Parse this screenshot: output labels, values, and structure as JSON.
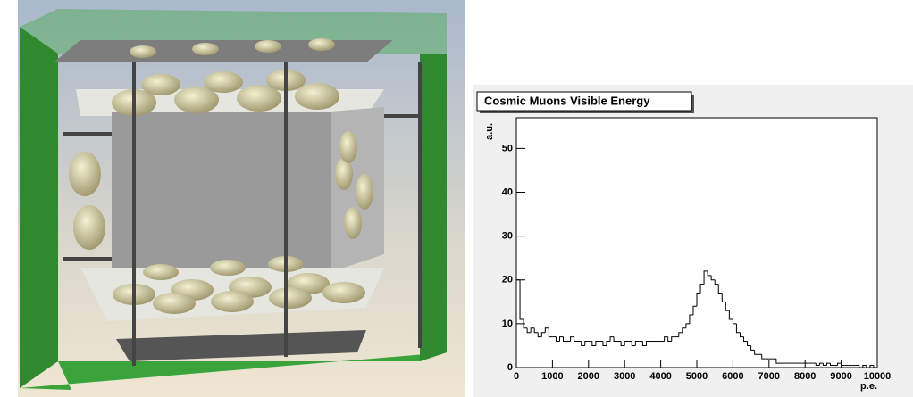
{
  "chart_data": {
    "type": "histogram",
    "title": "Cosmic Muons Visible Energy",
    "y_label": "a.u.",
    "x_label": "p.e.",
    "color": "#000000",
    "xlim": [
      0,
      10000
    ],
    "ylim": [
      0,
      57
    ],
    "xticks": [
      0,
      1000,
      2000,
      3000,
      4000,
      5000,
      6000,
      7000,
      8000,
      9000,
      10000
    ],
    "yticks": [
      0,
      10,
      20,
      30,
      40,
      50
    ],
    "bins": [
      0,
      100,
      200,
      300,
      400,
      500,
      600,
      700,
      800,
      900,
      1000,
      1100,
      1200,
      1300,
      1400,
      1500,
      1600,
      1700,
      1800,
      1900,
      2000,
      2100,
      2200,
      2300,
      2400,
      2500,
      2600,
      2700,
      2800,
      2900,
      3000,
      3100,
      3200,
      3300,
      3400,
      3500,
      3600,
      3700,
      3800,
      3900,
      4000,
      4100,
      4200,
      4300,
      4400,
      4500,
      4600,
      4700,
      4800,
      4900,
      5000,
      5100,
      5200,
      5300,
      5400,
      5500,
      5600,
      5700,
      5800,
      5900,
      6000,
      6100,
      6200,
      6300,
      6400,
      6500,
      6600,
      6700,
      6800,
      6900,
      7000,
      7100,
      7200,
      7300,
      7400,
      7500,
      7600,
      7700,
      7800,
      7900,
      8000,
      8100,
      8200,
      8300,
      8400,
      8500,
      8600,
      8700,
      8800,
      8900,
      9000,
      9100,
      9200,
      9300,
      9400,
      9500,
      9600,
      9700,
      9800,
      9900,
      10000
    ],
    "values": [
      20,
      11,
      9,
      8,
      9,
      8,
      7,
      8,
      9,
      7,
      7,
      6,
      7,
      6,
      6,
      7,
      6,
      6,
      5,
      6,
      6,
      5,
      6,
      6,
      5,
      6,
      7,
      6,
      6,
      5,
      6,
      6,
      5,
      6,
      6,
      5,
      6,
      6,
      6,
      6,
      6,
      7,
      6,
      7,
      7,
      8,
      9,
      10,
      12,
      14,
      17,
      19,
      22,
      21,
      20,
      19,
      17,
      15,
      13,
      11,
      10,
      8,
      7,
      6,
      5,
      4,
      3,
      3,
      2,
      2,
      2,
      2,
      1,
      1,
      1,
      1,
      1,
      1,
      1,
      1,
      1,
      1,
      1,
      0.5,
      1,
      0.5,
      1,
      0.5,
      0.5,
      1,
      0.5,
      0.5,
      0.5,
      0.5,
      0.5,
      0,
      0.5,
      0,
      0.5,
      0
    ]
  }
}
